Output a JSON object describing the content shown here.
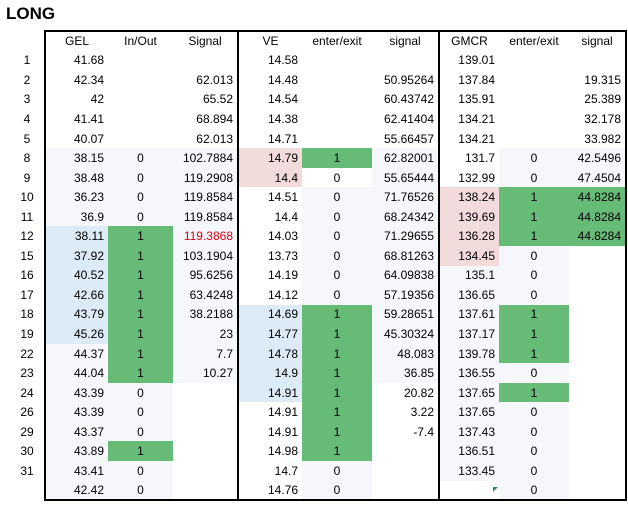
{
  "title": "LONG",
  "headers": [
    "",
    "GEL",
    "In/Out",
    "Signal",
    "VE",
    "enter/exit",
    "signal",
    "GMCR",
    "enter/exit",
    "signal"
  ],
  "rows": [
    [
      "1",
      "41.68",
      "",
      "",
      "14.58",
      "",
      "",
      "139.01",
      "",
      ""
    ],
    [
      "2",
      "42.34",
      "",
      "62.013",
      "14.48",
      "",
      "50.95264",
      "137.84",
      "",
      "19.315"
    ],
    [
      "3",
      "42",
      "",
      "65.52",
      "14.54",
      "",
      "60.43742",
      "135.91",
      "",
      "25.389"
    ],
    [
      "4",
      "41.41",
      "",
      "68.894",
      "14.38",
      "",
      "62.41404",
      "134.21",
      "",
      "32.178"
    ],
    [
      "5",
      "40.07",
      "",
      "62.013",
      "14.71",
      "",
      "55.66457",
      "134.21",
      "",
      "33.982"
    ],
    [
      "8",
      "38.15",
      "0",
      "102.7884",
      "14.79",
      "1",
      "62.82001",
      "131.7",
      "0",
      "42.5496"
    ],
    [
      "9",
      "38.48",
      "0",
      "119.2908",
      "14.4",
      "0",
      "55.65444",
      "132.99",
      "0",
      "47.4504"
    ],
    [
      "10",
      "36.23",
      "0",
      "119.8584",
      "14.51",
      "0",
      "71.76526",
      "138.24",
      "1",
      "44.8284"
    ],
    [
      "11",
      "36.9",
      "0",
      "119.8584",
      "14.4",
      "0",
      "68.24342",
      "139.69",
      "1",
      "44.8284"
    ],
    [
      "12",
      "38.11",
      "1",
      "119.3868",
      "14.03",
      "0",
      "71.29655",
      "136.28",
      "1",
      "44.8284"
    ],
    [
      "15",
      "37.92",
      "1",
      "103.1904",
      "13.73",
      "0",
      "68.81263",
      "134.45",
      "0",
      ""
    ],
    [
      "16",
      "40.52",
      "1",
      "95.6256",
      "14.19",
      "0",
      "64.09838",
      "135.1",
      "0",
      ""
    ],
    [
      "17",
      "42.66",
      "1",
      "63.4248",
      "14.12",
      "0",
      "57.19356",
      "136.65",
      "0",
      ""
    ],
    [
      "18",
      "43.79",
      "1",
      "38.2188",
      "14.69",
      "1",
      "59.28651",
      "137.61",
      "1",
      ""
    ],
    [
      "19",
      "45.26",
      "1",
      "23",
      "14.77",
      "1",
      "45.30324",
      "137.17",
      "1",
      ""
    ],
    [
      "22",
      "44.37",
      "1",
      "7.7",
      "14.78",
      "1",
      "48.083",
      "139.78",
      "1",
      ""
    ],
    [
      "23",
      "44.04",
      "1",
      "10.27",
      "14.9",
      "1",
      "36.85",
      "136.55",
      "0",
      ""
    ],
    [
      "24",
      "43.39",
      "0",
      "",
      "14.91",
      "1",
      "20.82",
      "137.65",
      "1",
      ""
    ],
    [
      "26",
      "43.39",
      "0",
      "",
      "14.91",
      "1",
      "3.22",
      "137.65",
      "0",
      ""
    ],
    [
      "29",
      "43.37",
      "0",
      "",
      "14.91",
      "1",
      "-7.4",
      "137.43",
      "0",
      ""
    ],
    [
      "30",
      "43.89",
      "1",
      "",
      "14.98",
      "1",
      "",
      "136.51",
      "0",
      ""
    ],
    [
      "31",
      "43.41",
      "0",
      "",
      "14.7",
      "0",
      "",
      "133.45",
      "0",
      ""
    ],
    [
      "",
      "42.42",
      "0",
      "",
      "14.76",
      "0",
      "",
      "",
      "0",
      ""
    ]
  ],
  "colors": {
    "light_blue": "#ddebf7",
    "light_pink": "#f2dcdb",
    "green": "#66bb77",
    "highlight_text": "#e0000f"
  }
}
